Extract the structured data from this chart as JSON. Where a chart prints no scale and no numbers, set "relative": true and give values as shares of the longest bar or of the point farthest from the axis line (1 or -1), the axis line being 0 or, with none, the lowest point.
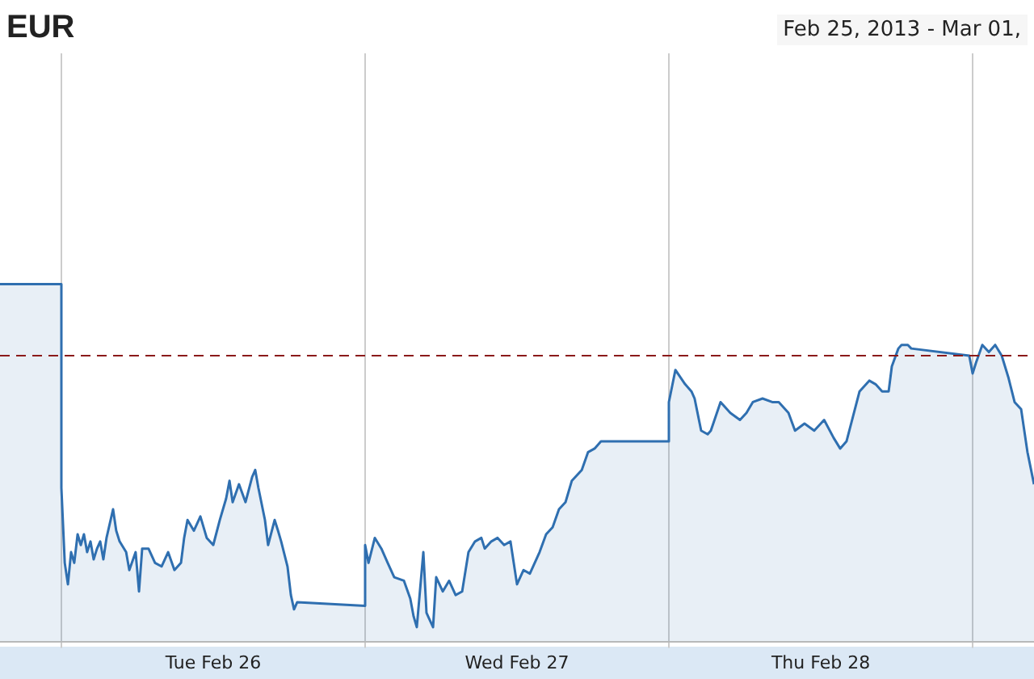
{
  "chart_data": {
    "type": "area",
    "title": "EUR",
    "subtitle": "Feb 25, 2013  -  Mar 01, ",
    "relative": true,
    "grid": "x",
    "legend": false,
    "marker": "none",
    "line_style": "solid",
    "xlim": [
      "2013-02-25T19:09",
      "2013-03-01T04:51"
    ],
    "xticks": [
      {
        "value": "2013-02-26T00:00",
        "label": null
      },
      {
        "value": "2013-02-26T12:00",
        "label": "Tue Feb 26"
      },
      {
        "value": "2013-02-27T00:00",
        "label": null
      },
      {
        "value": "2013-02-27T12:00",
        "label": "Wed Feb 27"
      },
      {
        "value": "2013-02-28T00:00",
        "label": null
      },
      {
        "value": "2013-02-28T12:00",
        "label": "Thu Feb 28"
      },
      {
        "value": "2013-03-01T00:00",
        "label": null
      }
    ],
    "ref_lines": [
      {
        "axis": "y",
        "value": 0.8,
        "label": null,
        "color": "#8b1a1a",
        "line_style": "dashed"
      }
    ],
    "series": [
      {
        "color": "#2f6fb0",
        "x": [
          "2013-02-25T19:09",
          "2013-02-26T00:00",
          "2013-02-26T00:00",
          "2013-02-26T00:16",
          "2013-02-26T00:31",
          "2013-02-26T00:46",
          "2013-02-26T01:01",
          "2013-02-26T01:17",
          "2013-02-26T01:32",
          "2013-02-26T01:47",
          "2013-02-26T02:02",
          "2013-02-26T02:18",
          "2013-02-26T02:33",
          "2013-02-26T02:49",
          "2013-02-26T03:04",
          "2013-02-26T03:19",
          "2013-02-26T03:34",
          "2013-02-26T04:05",
          "2013-02-26T04:20",
          "2013-02-26T04:36",
          "2013-02-26T05:07",
          "2013-02-26T05:22",
          "2013-02-26T05:52",
          "2013-02-26T06:08",
          "2013-02-26T06:23",
          "2013-02-26T06:53",
          "2013-02-26T07:24",
          "2013-02-26T07:55",
          "2013-02-26T08:26",
          "2013-02-26T08:56",
          "2013-02-26T09:27",
          "2013-02-26T09:42",
          "2013-02-26T09:58",
          "2013-02-26T10:28",
          "2013-02-26T10:59",
          "2013-02-26T11:29",
          "2013-02-26T12:00",
          "2013-02-26T12:31",
          "2013-02-26T13:01",
          "2013-02-26T13:17",
          "2013-02-26T13:32",
          "2013-02-26T14:02",
          "2013-02-26T14:33",
          "2013-02-26T15:04",
          "2013-02-26T15:19",
          "2013-02-26T15:34",
          "2013-02-26T16:05",
          "2013-02-26T16:20",
          "2013-02-26T16:51",
          "2013-02-26T17:07",
          "2013-02-26T17:22",
          "2013-02-26T17:52",
          "2013-02-26T18:08",
          "2013-02-26T18:23",
          "2013-02-26T18:38",
          "2013-02-27T00:00",
          "2013-02-27T00:00",
          "2013-02-27T00:16",
          "2013-02-27T00:46",
          "2013-02-27T01:17",
          "2013-02-27T01:47",
          "2013-02-27T02:18",
          "2013-02-27T03:04",
          "2013-02-27T03:34",
          "2013-02-27T03:50",
          "2013-02-27T04:05",
          "2013-02-27T04:36",
          "2013-02-27T04:51",
          "2013-02-27T05:22",
          "2013-02-27T05:37",
          "2013-02-27T06:08",
          "2013-02-27T06:38",
          "2013-02-27T07:09",
          "2013-02-27T07:40",
          "2013-02-27T08:10",
          "2013-02-27T08:41",
          "2013-02-27T09:11",
          "2013-02-27T09:27",
          "2013-02-27T09:58",
          "2013-02-27T10:28",
          "2013-02-27T10:59",
          "2013-02-27T11:29",
          "2013-02-27T12:00",
          "2013-02-27T12:31",
          "2013-02-27T13:01",
          "2013-02-27T13:47",
          "2013-02-27T14:18",
          "2013-02-27T14:49",
          "2013-02-27T15:19",
          "2013-02-27T15:50",
          "2013-02-27T16:20",
          "2013-02-27T17:07",
          "2013-02-27T17:37",
          "2013-02-27T18:08",
          "2013-02-27T18:38",
          "2013-02-27T19:24",
          "2013-02-28T00:00",
          "2013-02-28T00:00",
          "2013-02-28T00:31",
          "2013-02-28T01:17",
          "2013-02-28T01:47",
          "2013-02-28T02:02",
          "2013-02-28T02:33",
          "2013-02-28T03:04",
          "2013-02-28T03:19",
          "2013-02-28T04:05",
          "2013-02-28T04:20",
          "2013-02-28T04:51",
          "2013-02-28T05:37",
          "2013-02-28T06:08",
          "2013-02-28T06:38",
          "2013-02-28T07:24",
          "2013-02-28T08:10",
          "2013-02-28T08:41",
          "2013-02-28T09:27",
          "2013-02-28T09:58",
          "2013-02-28T10:43",
          "2013-02-28T11:29",
          "2013-02-28T12:16",
          "2013-02-28T13:01",
          "2013-02-28T13:32",
          "2013-02-28T14:02",
          "2013-02-28T14:33",
          "2013-02-28T15:04",
          "2013-02-28T15:50",
          "2013-02-28T16:20",
          "2013-02-28T16:51",
          "2013-02-28T17:22",
          "2013-02-28T17:37",
          "2013-02-28T18:08",
          "2013-02-28T18:23",
          "2013-02-28T18:53",
          "2013-02-28T19:09",
          "2013-02-28T23:44",
          "2013-03-01T00:00",
          "2013-03-01T00:16",
          "2013-03-01T00:46",
          "2013-03-01T01:17",
          "2013-03-01T01:47",
          "2013-03-01T02:18",
          "2013-03-01T02:49",
          "2013-03-01T03:19",
          "2013-03-01T03:50",
          "2013-03-01T04:20",
          "2013-03-01T04:51"
        ],
        "values": [
          1.0,
          1.0,
          0.43,
          0.22,
          0.16,
          0.25,
          0.22,
          0.3,
          0.27,
          0.3,
          0.25,
          0.28,
          0.23,
          0.26,
          0.28,
          0.23,
          0.29,
          0.37,
          0.31,
          0.28,
          0.25,
          0.2,
          0.25,
          0.14,
          0.26,
          0.26,
          0.22,
          0.21,
          0.25,
          0.2,
          0.22,
          0.29,
          0.34,
          0.31,
          0.35,
          0.29,
          0.27,
          0.34,
          0.4,
          0.45,
          0.39,
          0.44,
          0.39,
          0.46,
          0.48,
          0.43,
          0.34,
          0.27,
          0.34,
          0.31,
          0.28,
          0.21,
          0.13,
          0.09,
          0.11,
          0.1,
          0.27,
          0.22,
          0.29,
          0.26,
          0.22,
          0.18,
          0.17,
          0.12,
          0.07,
          0.04,
          0.25,
          0.08,
          0.04,
          0.18,
          0.14,
          0.17,
          0.13,
          0.14,
          0.25,
          0.28,
          0.29,
          0.26,
          0.28,
          0.29,
          0.27,
          0.28,
          0.16,
          0.2,
          0.19,
          0.25,
          0.3,
          0.32,
          0.37,
          0.39,
          0.45,
          0.48,
          0.53,
          0.54,
          0.56,
          0.56,
          0.56,
          0.67,
          0.76,
          0.72,
          0.7,
          0.68,
          0.59,
          0.58,
          0.59,
          0.67,
          0.66,
          0.64,
          0.62,
          0.64,
          0.67,
          0.68,
          0.67,
          0.67,
          0.64,
          0.59,
          0.61,
          0.59,
          0.62,
          0.57,
          0.54,
          0.56,
          0.63,
          0.7,
          0.73,
          0.72,
          0.7,
          0.7,
          0.77,
          0.82,
          0.83,
          0.83,
          0.82,
          0.8,
          0.75,
          0.78,
          0.83,
          0.81,
          0.83,
          0.8,
          0.74,
          0.67,
          0.65,
          0.53,
          0.44
        ]
      }
    ]
  }
}
